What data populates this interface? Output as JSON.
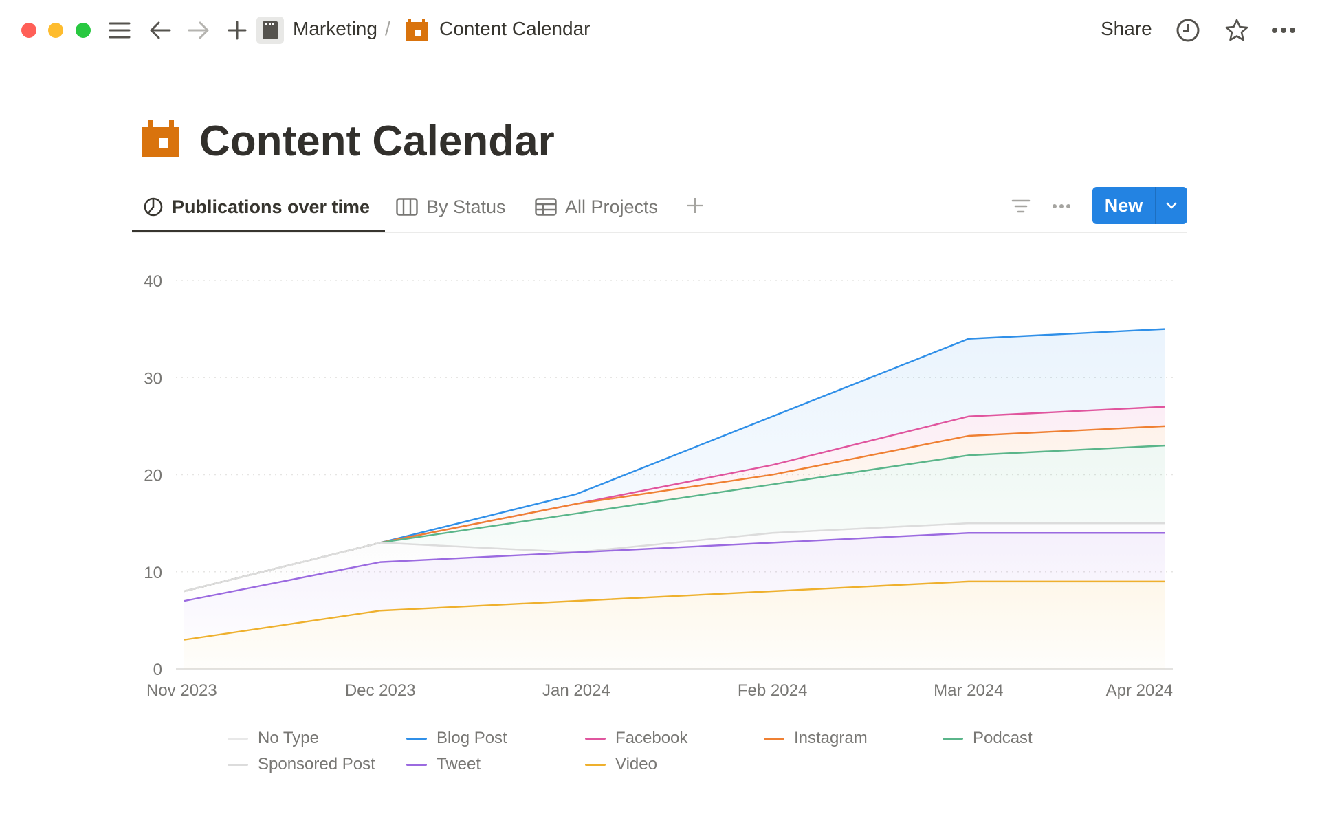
{
  "window": {
    "traffic_lights": [
      "#ff5f57",
      "#febc2e",
      "#28c840"
    ]
  },
  "topbar": {
    "breadcrumb": [
      {
        "label": "Marketing",
        "icon": "clapperboard-icon"
      },
      {
        "label": "Content Calendar",
        "icon": "calendar-icon"
      }
    ],
    "separator": "/",
    "share_label": "Share"
  },
  "page": {
    "title": "Content Calendar",
    "icon": "calendar-icon",
    "icon_color": "#d9730d"
  },
  "views": {
    "tabs": [
      {
        "label": "Publications over time",
        "icon": "chart-icon",
        "active": true
      },
      {
        "label": "By Status",
        "icon": "board-icon"
      },
      {
        "label": "All Projects",
        "icon": "table-icon"
      }
    ],
    "new_label": "New",
    "accent": "#2383e2"
  },
  "chart_data": {
    "type": "area",
    "stacked": true,
    "x": [
      "Nov 2023",
      "Dec 2023",
      "Jan 2024",
      "Feb 2024",
      "Mar 2024",
      "Apr 2024"
    ],
    "ylim": [
      0,
      40
    ],
    "yticks": [
      0,
      10,
      20,
      30,
      40
    ],
    "grid": true,
    "legend_placement": "bottom",
    "series": [
      {
        "name": "Video",
        "color": "#eeb02d",
        "values": [
          3,
          6,
          7,
          8,
          9,
          9
        ]
      },
      {
        "name": "Tweet",
        "color": "#9b6ae0",
        "values": [
          4,
          5,
          5,
          5,
          5,
          5
        ]
      },
      {
        "name": "Sponsored Post",
        "color": "#dcdcdc",
        "values": [
          1,
          2,
          0,
          1,
          1,
          1
        ]
      },
      {
        "name": "No Type",
        "color": "#e8e8e8",
        "values": [
          0,
          0,
          0,
          0,
          0,
          0
        ]
      },
      {
        "name": "Podcast",
        "color": "#5ab58a",
        "values": [
          0,
          0,
          4,
          5,
          7,
          8
        ]
      },
      {
        "name": "Instagram",
        "color": "#ef8033",
        "values": [
          0,
          0,
          1,
          1,
          2,
          2
        ]
      },
      {
        "name": "Facebook",
        "color": "#e0559e",
        "values": [
          0,
          0,
          0,
          1,
          2,
          2
        ]
      },
      {
        "name": "Blog Post",
        "color": "#2f8fe8",
        "values": [
          0,
          0,
          1,
          5,
          8,
          8
        ]
      }
    ],
    "legend_order": [
      "No Type",
      "Blog Post",
      "Facebook",
      "Instagram",
      "Podcast",
      "Sponsored Post",
      "Tweet",
      "Video"
    ]
  }
}
